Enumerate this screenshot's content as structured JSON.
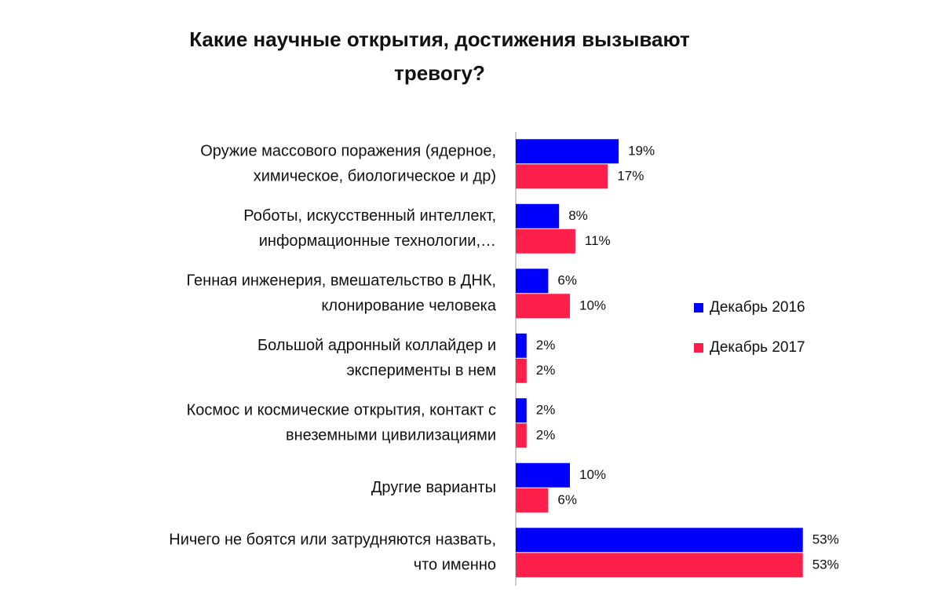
{
  "chart_data": {
    "type": "hbar",
    "title": "Какие научные открытия, достижения вызывают\nтревогу?",
    "categories": [
      "Оружие массового поражения (ядерное,\nхимическое, биологическое и др)",
      "Роботы, искусственный интеллект,\nинформационные технологии,…",
      "Генная инженерия, вмешательство в ДНК,\nклонирование человека",
      "Большой адронный коллайдер и\nэксперименты в нем",
      "Космос и космические открытия, контакт с\nвнеземными цивилизациями",
      "Другие варианты",
      "Ничего не боятся или затрудняются назвать,\nчто именно"
    ],
    "series": [
      {
        "name": "Декабрь 2016",
        "color": "#0000ff",
        "values": [
          19,
          8,
          6,
          2,
          2,
          10,
          53
        ],
        "value_labels": [
          "19%",
          "8%",
          "6%",
          "2%",
          "2%",
          "10%",
          "53%"
        ]
      },
      {
        "name": "Декабрь 2017",
        "color": "#ff1f4b",
        "values": [
          17,
          11,
          10,
          2,
          2,
          6,
          53
        ],
        "value_labels": [
          "17%",
          "11%",
          "10%",
          "2%",
          "2%",
          "6%",
          "53%"
        ]
      }
    ],
    "legend": "right"
  }
}
